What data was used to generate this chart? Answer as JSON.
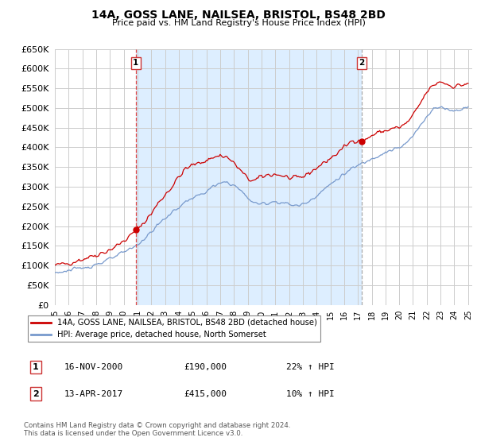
{
  "title": "14A, GOSS LANE, NAILSEA, BRISTOL, BS48 2BD",
  "subtitle": "Price paid vs. HM Land Registry's House Price Index (HPI)",
  "ylim": [
    0,
    650000
  ],
  "yticks": [
    0,
    50000,
    100000,
    150000,
    200000,
    250000,
    300000,
    350000,
    400000,
    450000,
    500000,
    550000,
    600000,
    650000
  ],
  "background_color": "#ffffff",
  "plot_bg_color": "#ffffff",
  "grid_color": "#cccccc",
  "shade_color": "#ddeeff",
  "legend_label_red": "14A, GOSS LANE, NAILSEA, BRISTOL, BS48 2BD (detached house)",
  "legend_label_blue": "HPI: Average price, detached house, North Somerset",
  "sale1_label": "1",
  "sale1_date": "16-NOV-2000",
  "sale1_price": "£190,000",
  "sale1_hpi": "22% ↑ HPI",
  "sale1_x": 2000.88,
  "sale1_y": 190000,
  "sale2_label": "2",
  "sale2_date": "13-APR-2017",
  "sale2_price": "£415,000",
  "sale2_hpi": "10% ↑ HPI",
  "sale2_x": 2017.28,
  "sale2_y": 415000,
  "red_color": "#cc0000",
  "blue_color": "#7799cc",
  "sale1_vline_color": "#dd4444",
  "sale2_vline_color": "#aaaaaa",
  "copyright_text": "Contains HM Land Registry data © Crown copyright and database right 2024.\nThis data is licensed under the Open Government Licence v3.0.",
  "xmin": 1995.0,
  "xmax": 2025.3
}
